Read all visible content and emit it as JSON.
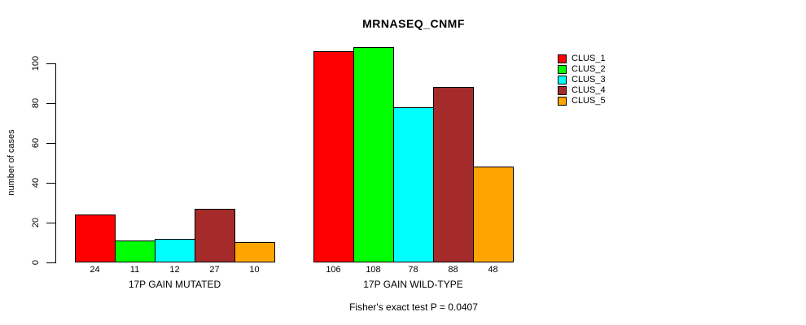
{
  "title": "MRNASEQ_CNMF",
  "caption": "Fisher's exact test P = 0.0407",
  "chart_data": {
    "type": "bar",
    "title": "MRNASEQ_CNMF",
    "xlabel": "",
    "ylabel": "number of cases",
    "ylim": [
      0,
      100
    ],
    "yticks": [
      0,
      20,
      40,
      60,
      80,
      100
    ],
    "grid": false,
    "legend_position": "right",
    "series_names": [
      "CLUS_1",
      "CLUS_2",
      "CLUS_3",
      "CLUS_4",
      "CLUS_5"
    ],
    "series_colors": [
      "#ff0000",
      "#00ff00",
      "#00ffff",
      "#a52a2a",
      "#ffa500"
    ],
    "groups": [
      {
        "label": "17P GAIN MUTATED",
        "values": [
          24,
          11,
          12,
          27,
          10
        ]
      },
      {
        "label": "17P GAIN WILD-TYPE",
        "values": [
          106,
          108,
          78,
          88,
          48
        ]
      }
    ],
    "bar_value_labels": [
      [
        24,
        11,
        12,
        27,
        10
      ],
      [
        106,
        108,
        78,
        88,
        48
      ]
    ],
    "annotation": "Fisher's exact test P = 0.0407"
  },
  "colors": {
    "background": "#ffffff",
    "axis": "#000000",
    "text": "#000000"
  }
}
